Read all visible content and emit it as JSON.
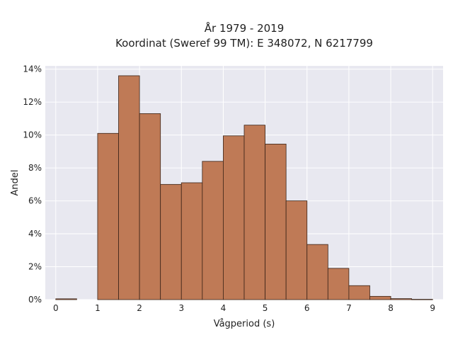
{
  "chart_data": {
    "type": "bar",
    "title": "År 1979 - 2019",
    "subtitle": "Koordinat (Sweref 99 TM): E 348072, N 6217799",
    "xlabel": "Vågperiod (s)",
    "ylabel": "Andel",
    "xlim": [
      -0.25,
      9.25
    ],
    "ylim": [
      0,
      14.2
    ],
    "xticks": [
      "0",
      "1",
      "2",
      "3",
      "4",
      "5",
      "6",
      "7",
      "8",
      "9"
    ],
    "yticks": [
      "0%",
      "2%",
      "4%",
      "6%",
      "8%",
      "10%",
      "12%",
      "14%"
    ],
    "bin_width": 0.5,
    "bins": [
      {
        "x0": 0.0,
        "value": 0.05
      },
      {
        "x0": 1.0,
        "value": 10.1
      },
      {
        "x0": 1.5,
        "value": 13.6
      },
      {
        "x0": 2.0,
        "value": 11.3
      },
      {
        "x0": 2.5,
        "value": 7.0
      },
      {
        "x0": 3.0,
        "value": 7.1
      },
      {
        "x0": 3.5,
        "value": 8.4
      },
      {
        "x0": 4.0,
        "value": 9.95
      },
      {
        "x0": 4.5,
        "value": 10.6
      },
      {
        "x0": 5.0,
        "value": 9.45
      },
      {
        "x0": 5.5,
        "value": 6.0
      },
      {
        "x0": 6.0,
        "value": 3.35
      },
      {
        "x0": 6.5,
        "value": 1.9
      },
      {
        "x0": 7.0,
        "value": 0.85
      },
      {
        "x0": 7.5,
        "value": 0.2
      },
      {
        "x0": 8.0,
        "value": 0.06
      },
      {
        "x0": 8.5,
        "value": 0.02
      }
    ],
    "grid": true,
    "colors": {
      "bar_fill": "#bf7a56",
      "bar_stroke": "#3b2418",
      "plot_bg": "#e8e8f0",
      "grid": "#ffffff"
    }
  }
}
